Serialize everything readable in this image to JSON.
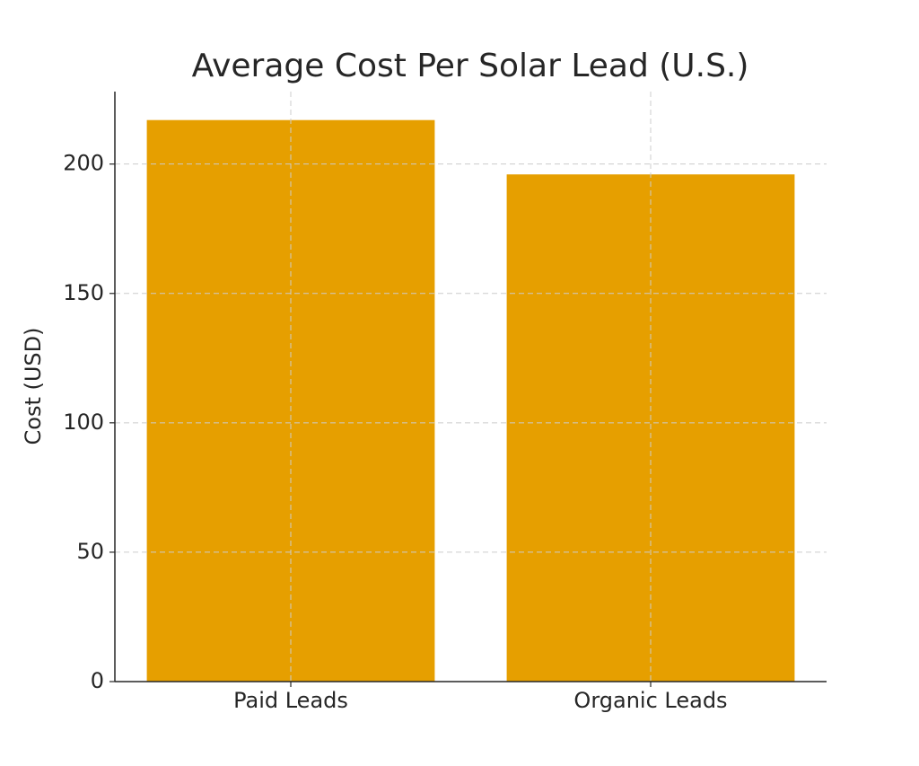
{
  "chart_data": {
    "type": "bar",
    "title": "Average Cost Per Solar Lead (U.S.)",
    "y_label": "Cost (USD)",
    "categories": [
      "Paid Leads",
      "Organic Leads"
    ],
    "values": [
      217,
      196
    ],
    "color": "#e69f00",
    "ylim": [
      0,
      228
    ],
    "yticks": [
      0,
      50,
      100,
      150,
      200
    ],
    "grid": true
  }
}
